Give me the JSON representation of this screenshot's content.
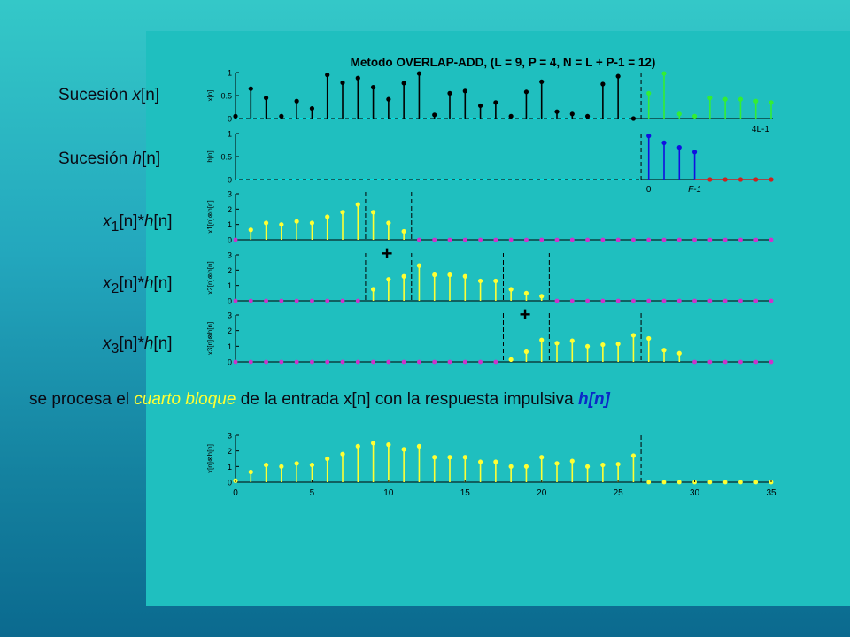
{
  "labels": {
    "seq_x": {
      "prefix": "Sucesión ",
      "var": "x",
      "idx": "[n]"
    },
    "seq_h": {
      "prefix": "Sucesión ",
      "var": "h",
      "idx": "[n]"
    },
    "conv1": {
      "a": "x",
      "sub": "1",
      "b": "[n]",
      "op": "*",
      "c": "h",
      "d": "[n]"
    },
    "conv2": {
      "a": "x",
      "sub": "2",
      "b": "[n]",
      "op": "*",
      "c": "h",
      "d": "[n]"
    },
    "conv3": {
      "a": "x",
      "sub": "3",
      "b": "[n]",
      "op": "*",
      "c": "h",
      "d": "[n]"
    }
  },
  "caption": {
    "part1": "se procesa el ",
    "highlight": "cuarto bloque",
    "part2": " de la entrada x[n] con la respuesta impulsiva ",
    "bold": "h[n]"
  },
  "colors": {
    "x_block": "#000000",
    "x_next": "#33ee33",
    "h": "#1010e0",
    "h_zeros": "#cc2222",
    "conv": "#ffff33",
    "zero_dots": "#cc33cc",
    "axis_zero": "#00e0e0"
  },
  "chart_data": [
    {
      "type": "stem",
      "title": "Metodo OVERLAP-ADD, (L = 9, P = 4, N = L + P-1 = 12)",
      "ylabel": "x[n]",
      "yticks": [
        "0",
        "0.5",
        "1"
      ],
      "ylim": [
        0,
        1
      ],
      "xlim": [
        0,
        35
      ],
      "annotation": "4L-1",
      "series": [
        {
          "role": "signal",
          "x": [
            0,
            1,
            2,
            3,
            4,
            5,
            6,
            7,
            8,
            9,
            10,
            11,
            12,
            13,
            14,
            15,
            16,
            17,
            18,
            19,
            20,
            21,
            22,
            23,
            24,
            25,
            26
          ],
          "values": [
            0.05,
            0.65,
            0.45,
            0.05,
            0.38,
            0.22,
            0.95,
            0.78,
            0.88,
            0.68,
            0.42,
            0.77,
            0.98,
            0.08,
            0.55,
            0.6,
            0.28,
            0.35,
            0.05,
            0.58,
            0.8,
            0.15,
            0.1,
            0.05,
            0.75,
            0.92,
            0.0
          ]
        },
        {
          "role": "next-block",
          "x": [
            27,
            28,
            29,
            30,
            31,
            32,
            33,
            34,
            35
          ],
          "values": [
            0.55,
            0.98,
            0.1,
            0.05,
            0.45,
            0.42,
            0.42,
            0.38,
            0.35
          ]
        }
      ]
    },
    {
      "type": "stem",
      "ylabel": "h[n]",
      "yticks": [
        "0",
        "0.5",
        "1"
      ],
      "ylim": [
        0,
        1
      ],
      "xlim": [
        0,
        35
      ],
      "xticklabels": [
        "0",
        "F-1"
      ],
      "series": [
        {
          "role": "h",
          "x": [
            27,
            28,
            29,
            30
          ],
          "values": [
            0.95,
            0.8,
            0.7,
            0.6
          ]
        },
        {
          "role": "h-zero-pad",
          "x": [
            31,
            32,
            33,
            34,
            35
          ],
          "values": [
            0,
            0,
            0,
            0,
            0
          ]
        }
      ]
    },
    {
      "type": "stem",
      "ylabel": "x1[n]⊗h[n]",
      "yticks": [
        "0",
        "1",
        "2",
        "3"
      ],
      "ylim": [
        0,
        3
      ],
      "xlim": [
        0,
        35
      ],
      "series": [
        {
          "role": "conv",
          "x": [
            1,
            2,
            3,
            4,
            5,
            6,
            7,
            8,
            9,
            10,
            11
          ],
          "values": [
            0.65,
            1.1,
            1.0,
            1.2,
            1.1,
            1.5,
            1.8,
            2.3,
            1.8,
            1.1,
            0.55
          ]
        }
      ]
    },
    {
      "type": "stem",
      "ylabel": "x2[n]⊗h[n]",
      "yticks": [
        "0",
        "1",
        "2",
        "3"
      ],
      "ylim": [
        0,
        3
      ],
      "xlim": [
        0,
        35
      ],
      "series": [
        {
          "role": "conv",
          "x": [
            9,
            10,
            11,
            12,
            13,
            14,
            15,
            16,
            17,
            18,
            19,
            20
          ],
          "values": [
            0.75,
            1.4,
            1.6,
            2.3,
            1.7,
            1.7,
            1.6,
            1.3,
            1.3,
            0.75,
            0.5,
            0.3
          ]
        }
      ]
    },
    {
      "type": "stem",
      "ylabel": "x3[n]⊗h[n]",
      "yticks": [
        "0",
        "1",
        "2",
        "3"
      ],
      "ylim": [
        0,
        3
      ],
      "xlim": [
        0,
        35
      ],
      "series": [
        {
          "role": "conv",
          "x": [
            18,
            19,
            20,
            21,
            22,
            23,
            24,
            25,
            26,
            27,
            28,
            29
          ],
          "values": [
            0.15,
            0.65,
            1.4,
            1.2,
            1.35,
            1.0,
            1.1,
            1.15,
            1.7,
            1.5,
            0.75,
            0.55
          ]
        }
      ]
    },
    {
      "type": "stem",
      "ylabel": "x[n]⊗h[n]",
      "yticks": [
        "0",
        "1",
        "2",
        "3"
      ],
      "ylim": [
        0,
        3
      ],
      "xlim": [
        0,
        35
      ],
      "xticks": [
        "0",
        "5",
        "10",
        "15",
        "20",
        "25",
        "30",
        "35"
      ],
      "series": [
        {
          "role": "conv",
          "x": [
            0,
            1,
            2,
            3,
            4,
            5,
            6,
            7,
            8,
            9,
            10,
            11,
            12,
            13,
            14,
            15,
            16,
            17,
            18,
            19,
            20,
            21,
            22,
            23,
            24,
            25,
            26
          ],
          "values": [
            0.1,
            0.65,
            1.1,
            1.0,
            1.2,
            1.1,
            1.5,
            1.8,
            2.3,
            2.5,
            2.4,
            2.1,
            2.3,
            1.6,
            1.6,
            1.6,
            1.3,
            1.3,
            1.0,
            1.0,
            1.6,
            1.2,
            1.35,
            1.0,
            1.1,
            1.15,
            1.7
          ]
        }
      ]
    }
  ]
}
